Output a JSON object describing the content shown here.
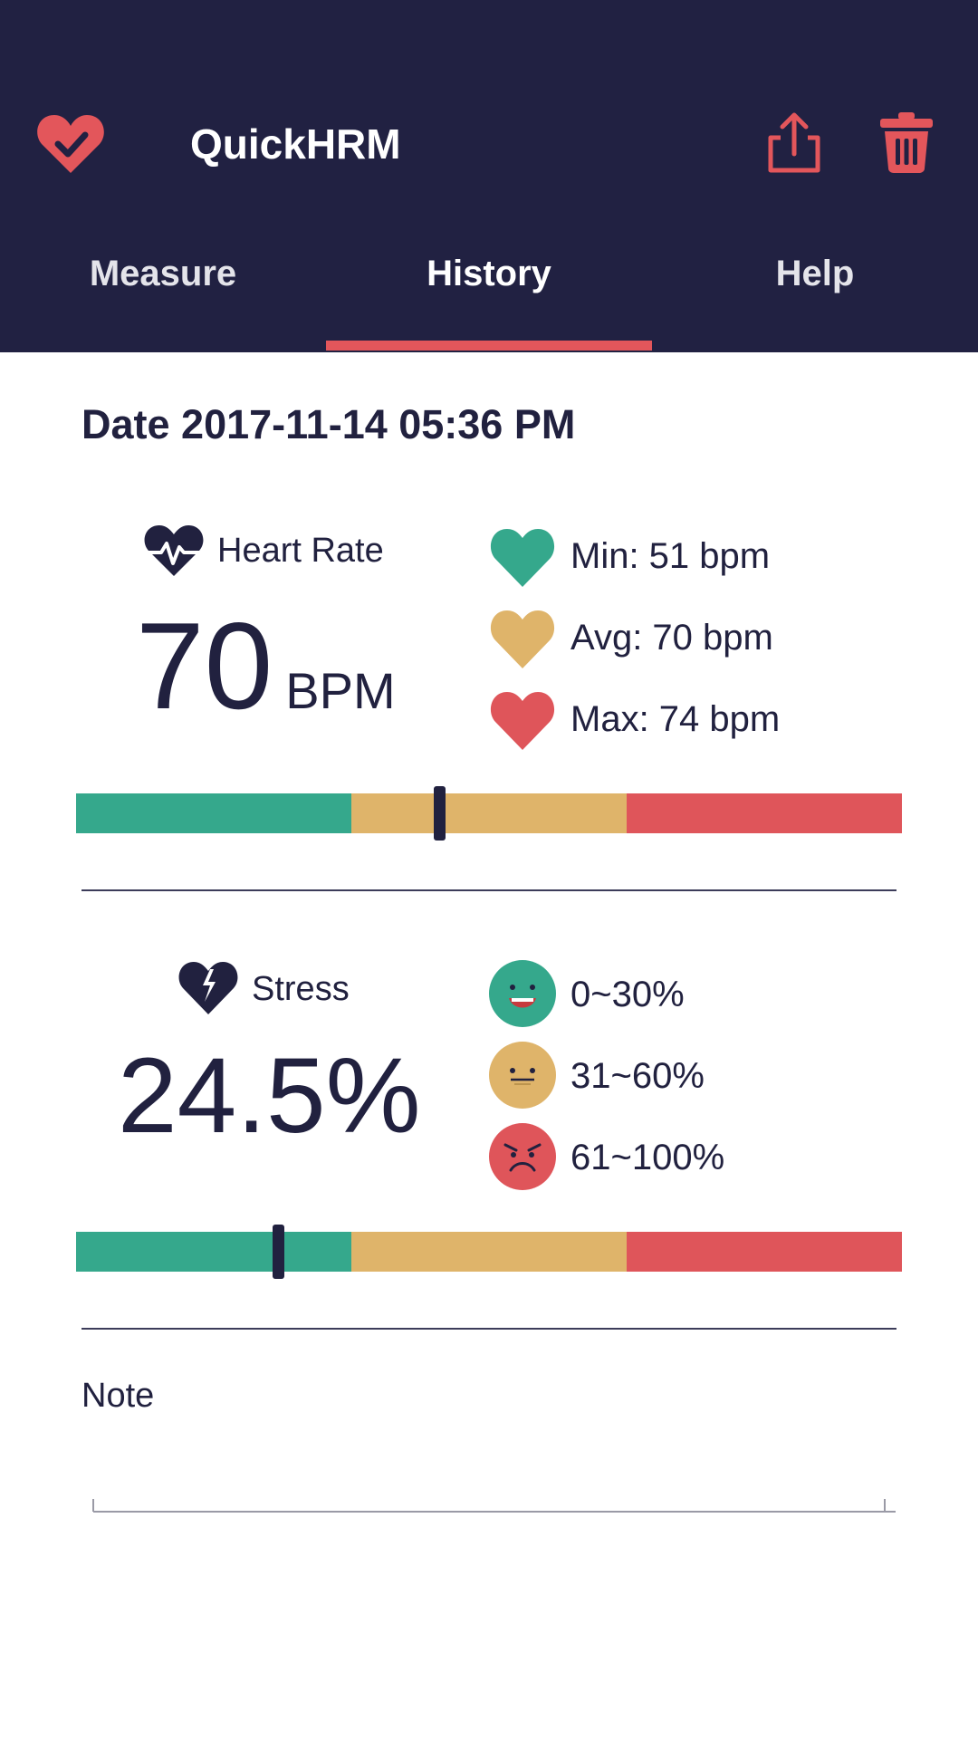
{
  "colors": {
    "header_bg": "#212142",
    "accent": "#e3565b",
    "green": "#35a88c",
    "yellow": "#dfb46a",
    "red": "#df555a",
    "text": "#21213f"
  },
  "header": {
    "title": "QuickHRM",
    "logo_icon": "heart-check-icon",
    "share_icon": "share-icon",
    "delete_icon": "trash-icon"
  },
  "tabs": [
    {
      "label": "Measure",
      "active": false
    },
    {
      "label": "History",
      "active": true
    },
    {
      "label": "Help",
      "active": false
    }
  ],
  "record": {
    "date": "Date 2017-11-14 05:36 PM"
  },
  "heart_rate": {
    "label": "Heart Rate",
    "value": "70",
    "unit": "BPM",
    "min": "Min: 51 bpm",
    "avg": "Avg: 70 bpm",
    "max": "Max: 74 bpm",
    "bar_position": 0.44
  },
  "stress": {
    "label": "Stress",
    "value": "24.5%",
    "low": "0~30%",
    "mid": "31~60%",
    "high": "61~100%",
    "bar_position": 0.245
  },
  "note": {
    "label": "Note",
    "value": ""
  }
}
